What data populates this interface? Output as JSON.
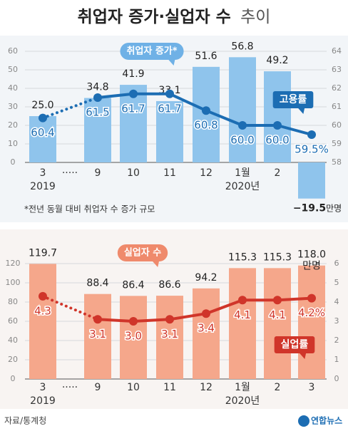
{
  "title": {
    "main": "취업자 증가·실업자 수",
    "suffix": "추이"
  },
  "source": "자료/통계청",
  "logo": "연합뉴스",
  "chart_data": [
    {
      "type": "combo",
      "categories": [
        "3",
        "·····",
        "9",
        "10",
        "11",
        "12",
        "1월",
        "2",
        "3"
      ],
      "years": [
        "2019",
        null,
        null,
        null,
        null,
        null,
        "2020년",
        null,
        null
      ],
      "ylim": [
        0,
        60
      ],
      "yticks": [
        0,
        10,
        20,
        30,
        40,
        50,
        60
      ],
      "y2lim": [
        58,
        64
      ],
      "y2ticks": [
        58,
        59,
        60,
        61,
        62,
        63,
        64
      ],
      "grid": true,
      "series": [
        {
          "name": "취업자 증가*",
          "type": "bar",
          "color": "#8fc4ec",
          "values": [
            25.0,
            null,
            34.8,
            41.9,
            33.1,
            51.6,
            56.8,
            49.2,
            -19.5
          ],
          "value_labels": [
            "25.0",
            null,
            "34.8",
            "41.9",
            "33.1",
            "51.6",
            "56.8",
            "49.2",
            "−19.5"
          ]
        },
        {
          "name": "고용률",
          "type": "line",
          "axis": "y2",
          "color": "#1c6db3",
          "values": [
            60.4,
            null,
            61.5,
            61.7,
            61.7,
            60.8,
            60.0,
            60.0,
            59.5
          ],
          "value_labels": [
            "60.4",
            null,
            "61.5",
            "61.7",
            "61.7",
            "60.8",
            "60.0",
            "60.0",
            "59.5%"
          ]
        }
      ],
      "unit_label": "만명",
      "footnote": "*전년 동월 대비 취업자 수 증가 규모"
    },
    {
      "type": "combo",
      "categories": [
        "3",
        "·····",
        "9",
        "10",
        "11",
        "12",
        "1월",
        "2",
        "3"
      ],
      "years": [
        "2019",
        null,
        null,
        null,
        null,
        null,
        "2020년",
        null,
        null
      ],
      "ylim": [
        0,
        120
      ],
      "yticks": [
        0,
        20,
        40,
        60,
        80,
        100,
        120
      ],
      "y2lim": [
        0,
        6
      ],
      "y2ticks": [
        0,
        1,
        2,
        3,
        4,
        5,
        6
      ],
      "grid": true,
      "series": [
        {
          "name": "실업자 수",
          "type": "bar",
          "color": "#f5a78b",
          "values": [
            119.7,
            null,
            88.4,
            86.4,
            86.6,
            94.2,
            115.3,
            115.3,
            118.0
          ],
          "value_labels": [
            "119.7",
            null,
            "88.4",
            "86.4",
            "86.6",
            "94.2",
            "115.3",
            "115.3",
            "118.0"
          ]
        },
        {
          "name": "실업률",
          "type": "line",
          "axis": "y2",
          "color": "#d0352a",
          "values": [
            4.3,
            null,
            3.1,
            3.0,
            3.1,
            3.4,
            4.1,
            4.1,
            4.2
          ],
          "value_labels": [
            "4.3",
            null,
            "3.1",
            "3.0",
            "3.1",
            "3.4",
            "4.1",
            "4.1",
            "4.2%"
          ]
        }
      ],
      "unit_label": "만명"
    }
  ]
}
